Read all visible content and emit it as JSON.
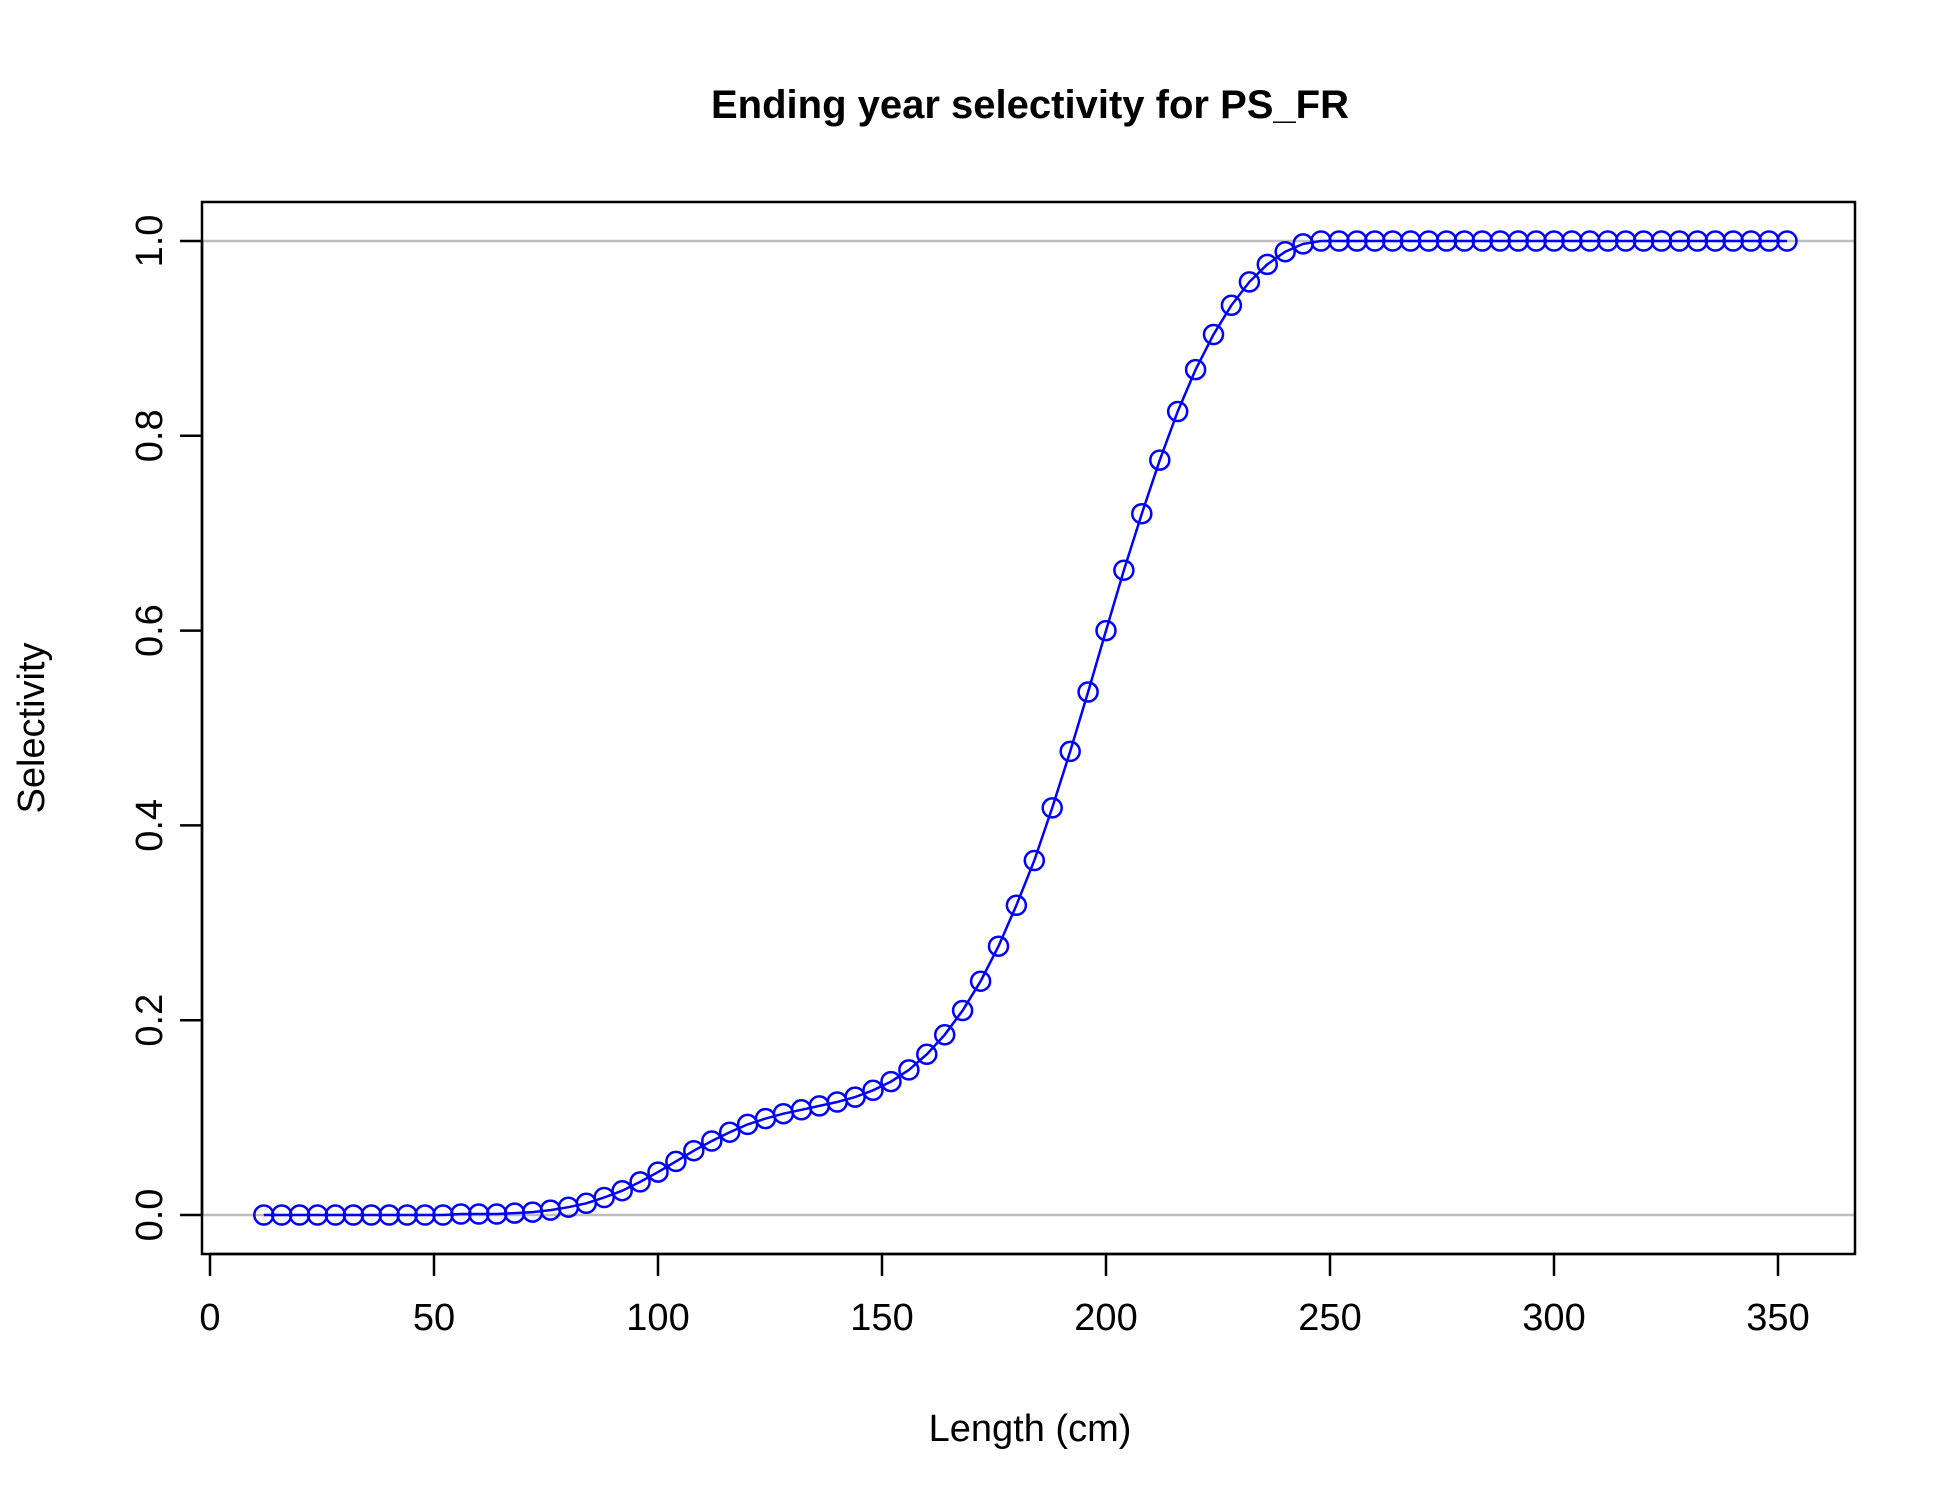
{
  "chart_data": {
    "type": "line",
    "title": "Ending year selectivity for PS_FR",
    "xlabel": "Length (cm)",
    "ylabel": "Selectivity",
    "xlim": [
      0,
      355
    ],
    "ylim": [
      0,
      1
    ],
    "x_ticks": [
      0,
      50,
      100,
      150,
      200,
      250,
      300,
      350
    ],
    "x_tick_labels": [
      "0",
      "50",
      "100",
      "150",
      "200",
      "250",
      "300",
      "350"
    ],
    "y_ticks": [
      0,
      0.2,
      0.4,
      0.6,
      0.8,
      1.0
    ],
    "y_tick_labels": [
      "0.0",
      "0.2",
      "0.4",
      "0.6",
      "0.8",
      "1.0"
    ],
    "reference_lines": [
      0,
      1
    ],
    "grid": false,
    "line_color": "#0000ff",
    "marker": "open-circle",
    "reference_line_color": "#bebebe",
    "series": [
      {
        "x": [
          12,
          16,
          20,
          24,
          28,
          32,
          36,
          40,
          44,
          48,
          52,
          56,
          60,
          64,
          68,
          72,
          76,
          80,
          84,
          88,
          92,
          96,
          100,
          104,
          108,
          112,
          116,
          120,
          124,
          128,
          132,
          136,
          140,
          144,
          148,
          152,
          156,
          160,
          164,
          168,
          172,
          176,
          180,
          184,
          188,
          192,
          196,
          200,
          204,
          208,
          212,
          216,
          220,
          224,
          228,
          232,
          236,
          240,
          244,
          248,
          252,
          256,
          260,
          264,
          268,
          272,
          276,
          280,
          284,
          288,
          292,
          296,
          300,
          304,
          308,
          312,
          316,
          320,
          324,
          328,
          332,
          336,
          340,
          344,
          348,
          352
        ],
        "y": [
          0,
          0,
          0,
          0,
          0,
          0,
          0,
          0,
          0,
          0,
          0,
          0.001,
          0.001,
          0.001,
          0.002,
          0.003,
          0.005,
          0.008,
          0.012,
          0.018,
          0.025,
          0.034,
          0.044,
          0.055,
          0.066,
          0.076,
          0.085,
          0.093,
          0.099,
          0.104,
          0.108,
          0.112,
          0.116,
          0.121,
          0.128,
          0.137,
          0.149,
          0.165,
          0.185,
          0.21,
          0.24,
          0.276,
          0.318,
          0.364,
          0.418,
          0.476,
          0.537,
          0.6,
          0.662,
          0.72,
          0.775,
          0.825,
          0.868,
          0.904,
          0.934,
          0.958,
          0.976,
          0.989,
          0.997,
          1,
          1,
          1,
          1,
          1,
          1,
          1,
          1,
          1,
          1,
          1,
          1,
          1,
          1,
          1,
          1,
          1,
          1,
          1,
          1,
          1,
          1,
          1,
          1,
          1,
          1,
          1
        ]
      }
    ]
  }
}
